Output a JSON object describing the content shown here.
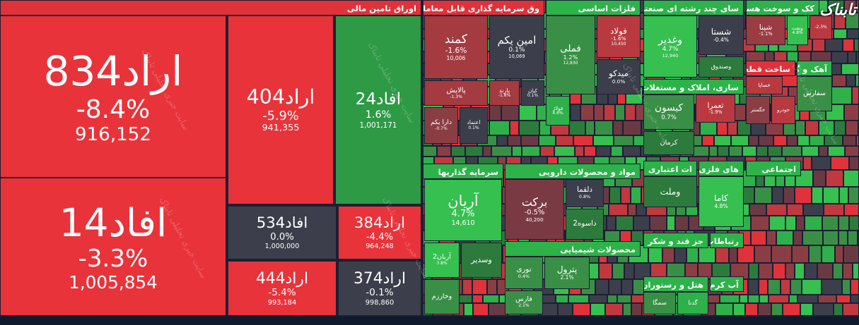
{
  "logo": "تابناک",
  "watermark": "سایت خبری تحلیلی تابناک",
  "sectors": [
    {
      "title": "اوراق تامین مالی",
      "tiles": [
        {
          "symbol": "اراد834",
          "change": "-8.4%",
          "volume": "916,152"
        },
        {
          "symbol": "افاد14",
          "change": "-3.3%",
          "volume": "1,005,854"
        },
        {
          "symbol": "اراد404",
          "change": "-5.9%",
          "volume": "941,355"
        },
        {
          "symbol": "افاد24",
          "change": "1.6%",
          "volume": "1,001,171"
        },
        {
          "symbol": "افاد534",
          "change": "0.0%",
          "volume": "1,000,000"
        },
        {
          "symbol": "اراد384",
          "change": "-4.4%",
          "volume": "964,248"
        },
        {
          "symbol": "اراد444",
          "change": "-5.4%",
          "volume": "993,184"
        },
        {
          "symbol": "اراد374",
          "change": "-0.1%",
          "volume": "998,860"
        }
      ]
    },
    {
      "title": "وق سرمایه گذاری قابل معامله",
      "tiles": [
        {
          "symbol": "کمند",
          "change": "-1.6%",
          "volume": "10,006"
        },
        {
          "symbol": "امین یکم",
          "change": "0.1%",
          "volume": "10,069"
        },
        {
          "symbol": "پالایش",
          "change": "-1.3%"
        },
        {
          "symbol": "پارند",
          "change": "-1.8%"
        },
        {
          "symbol": "کیان",
          "change": "0.1%"
        },
        {
          "symbol": "دارا یکم",
          "change": "-0.7%"
        },
        {
          "symbol": "اعتماد",
          "change": "0.1%"
        }
      ]
    },
    {
      "title": "فلزات اساسی",
      "tiles": [
        {
          "symbol": "فملی",
          "change": "1.2%",
          "volume": "12,830"
        },
        {
          "symbol": "فولاد",
          "change": "-1.6%",
          "volume": "10,450"
        },
        {
          "symbol": "میدکو",
          "change": "0.0%"
        },
        {
          "symbol": "فولاژ",
          "change": "4.6%"
        }
      ]
    },
    {
      "title": "سای چند رشته ای صنعتی",
      "tiles": [
        {
          "symbol": "وغدیر",
          "change": "4.7%",
          "volume": "12,940"
        },
        {
          "symbol": "شستا",
          "change": "-0.4%"
        },
        {
          "symbol": "وصندوق"
        }
      ]
    },
    {
      "title": "کک و سوخت هسته ای",
      "tiles": [
        {
          "symbol": "شپنا",
          "change": "-1.1%"
        },
        {
          "symbol": "ونفت",
          "change": "4.8%"
        },
        {
          "change": "-2.3%"
        }
      ]
    },
    {
      "title": "ساخت قطعات",
      "tiles": [
        {
          "symbol": "خساپا"
        },
        {
          "symbol": "خگستر"
        },
        {
          "symbol": "خودرو"
        }
      ]
    },
    {
      "title": "آهک و گچ",
      "tiles": [
        {
          "symbol": "سفارس"
        }
      ]
    },
    {
      "title": "سازی، املاک و مستغلات",
      "tiles": [
        {
          "symbol": "کیسون",
          "change": "0.7%"
        },
        {
          "symbol": "ثعمرا",
          "change": "-1.9%"
        },
        {
          "symbol": "کرمان"
        }
      ]
    },
    {
      "title": "سرمایه گذاریها",
      "tiles": [
        {
          "symbol": "آریان",
          "change": "4.7%",
          "volume": "14,610"
        },
        {
          "symbol": "آریان2",
          "change": "3.8%"
        },
        {
          "symbol": "وسدیر"
        },
        {
          "symbol": "وخارزم"
        }
      ]
    },
    {
      "title": "مواد و محصولات دارویی",
      "tiles": [
        {
          "symbol": "برکت",
          "change": "-0.5%",
          "volume": "40,200"
        },
        {
          "symbol": "دلقما",
          "change": "0.8%"
        },
        {
          "symbol": "داسوه2"
        }
      ]
    },
    {
      "title": "محصولات شیمیایی",
      "tiles": [
        {
          "symbol": "نوری",
          "change": "0.4%"
        },
        {
          "symbol": "پترول",
          "change": "2.1%"
        },
        {
          "symbol": "فارس",
          "change": "2.1%"
        }
      ]
    },
    {
      "title": "ات اعتباری",
      "tiles": [
        {
          "symbol": "وملت"
        }
      ]
    },
    {
      "title": "های فلزی",
      "tiles": [
        {
          "symbol": "کاما",
          "change": "4.8%"
        }
      ]
    },
    {
      "title": "اجتماعی",
      "tiles": []
    },
    {
      "title": "جز قند و شکر",
      "tiles": []
    },
    {
      "title": "رتباطات",
      "tiles": []
    },
    {
      "title": "هتل و رستوران",
      "tiles": [
        {
          "symbol": "سمگا"
        },
        {
          "symbol": "گدنا"
        }
      ]
    },
    {
      "title": "آب کرم",
      "tiles": []
    }
  ]
}
